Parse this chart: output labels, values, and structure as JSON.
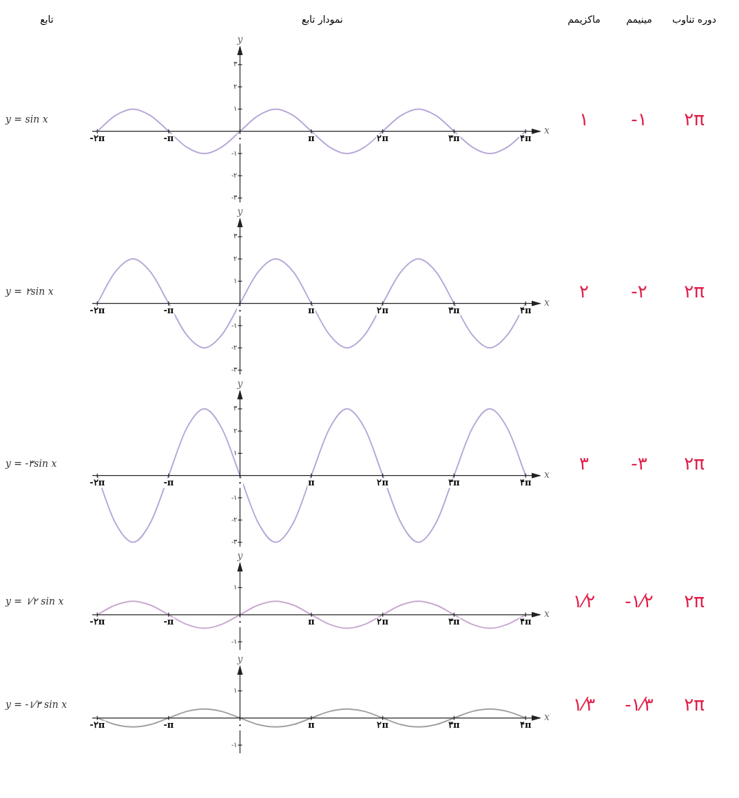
{
  "chart_data": [
    {
      "type": "line",
      "title": "y = sin x",
      "xlabel": "x",
      "ylabel": "y",
      "annotations": [
        "تابع",
        "نمودار تابع",
        "ماکزیمم",
        "مینیمم",
        "دوره تناوب",
        "۱",
        "-۱",
        "۲π"
      ],
      "x": [
        -6.28,
        -5.5,
        -4.71,
        -3.93,
        -3.14,
        -2.36,
        -1.57,
        -0.79,
        0,
        0.79,
        1.57,
        2.36,
        3.14,
        3.93,
        4.71,
        5.5,
        6.28,
        7.07,
        7.85,
        8.64,
        9.42,
        10.21,
        10.99,
        11.78,
        12.57
      ],
      "series": [
        {
          "color": "#b8a8d8",
          "values": [
            0,
            0.7,
            1,
            0.7,
            0,
            -0.7,
            -1,
            -0.7,
            0,
            0.7,
            1,
            0.7,
            0,
            -0.7,
            -1,
            -0.7,
            0,
            0.7,
            1,
            0.7,
            0,
            -0.7,
            -1,
            -0.7,
            0
          ]
        }
      ],
      "xlim": [
        -6.5,
        13.2
      ],
      "ylim": [
        -3.2,
        3.8
      ],
      "xticks": [
        {
          "value": -6.28,
          "label": "-۲π"
        },
        {
          "value": -3.14,
          "label": "-π"
        },
        {
          "value": 0,
          "label": "۰"
        },
        {
          "value": 3.14,
          "label": "π"
        },
        {
          "value": 6.28,
          "label": "۲π"
        },
        {
          "value": 9.42,
          "label": "۳π"
        },
        {
          "value": 12.57,
          "label": "۴π"
        }
      ],
      "yticks": [
        {
          "value": -3,
          "label": "-۳"
        },
        {
          "value": -2,
          "label": "-۲"
        },
        {
          "value": -1,
          "label": "-۱"
        },
        {
          "value": 1,
          "label": "۱"
        },
        {
          "value": 2,
          "label": "۲"
        },
        {
          "value": 3,
          "label": "۳"
        }
      ],
      "legend": false,
      "grid": false,
      "marker": "none",
      "line_style": "solid"
    },
    {
      "type": "line",
      "title": "y = ۲sin x",
      "xlabel": "x",
      "ylabel": "y",
      "annotations": [
        "۲",
        "-۲",
        "۲π"
      ],
      "x": [
        -6.28,
        -5.5,
        -4.71,
        -3.93,
        -3.14,
        -2.36,
        -1.57,
        -0.79,
        0,
        0.79,
        1.57,
        2.36,
        3.14,
        3.93,
        4.71,
        5.5,
        6.28,
        7.07,
        7.85,
        8.64,
        9.42,
        10.21,
        10.99,
        11.78,
        12.57
      ],
      "series": [
        {
          "color": "#b8a8d8",
          "values": [
            0,
            1.4,
            2,
            1.4,
            0,
            -1.4,
            -2,
            -1.4,
            0,
            1.4,
            2,
            1.4,
            0,
            -1.4,
            -2,
            -1.4,
            0,
            1.4,
            2,
            1.4,
            0,
            -1.4,
            -2,
            -1.4,
            0
          ]
        }
      ],
      "xlim": [
        -6.5,
        13.2
      ],
      "ylim": [
        -3.2,
        3.8
      ],
      "xticks": [
        {
          "value": -6.28,
          "label": "-۲π"
        },
        {
          "value": -3.14,
          "label": "-π"
        },
        {
          "value": 0,
          "label": "۰"
        },
        {
          "value": 3.14,
          "label": "π"
        },
        {
          "value": 6.28,
          "label": "۲π"
        },
        {
          "value": 9.42,
          "label": "۳π"
        },
        {
          "value": 12.57,
          "label": "۴π"
        }
      ],
      "yticks": [
        {
          "value": -3,
          "label": "-۳"
        },
        {
          "value": -2,
          "label": "-۲"
        },
        {
          "value": -1,
          "label": "-۱"
        },
        {
          "value": 1,
          "label": "۱"
        },
        {
          "value": 2,
          "label": "۲"
        },
        {
          "value": 3,
          "label": "۳"
        }
      ],
      "legend": false,
      "grid": false,
      "marker": "none",
      "line_style": "solid"
    },
    {
      "type": "line",
      "title": "y = -۳sin x",
      "xlabel": "x",
      "ylabel": "y",
      "annotations": [
        "۳",
        "-۳",
        "۲π"
      ],
      "x": [
        -6.28,
        -5.5,
        -4.71,
        -3.93,
        -3.14,
        -2.36,
        -1.57,
        -0.79,
        0,
        0.79,
        1.57,
        2.36,
        3.14,
        3.93,
        4.71,
        5.5,
        6.28,
        7.07,
        7.85,
        8.64,
        9.42,
        10.21,
        10.99,
        11.78,
        12.57
      ],
      "series": [
        {
          "color": "#b8a8d8",
          "values": [
            0,
            -2.1,
            -3,
            -2.1,
            0,
            2.1,
            3,
            2.1,
            0,
            -2.1,
            -3,
            -2.1,
            0,
            2.1,
            3,
            2.1,
            0,
            -2.1,
            -3,
            -2.1,
            0,
            2.1,
            3,
            2.1,
            0
          ]
        }
      ],
      "xlim": [
        -6.5,
        13.2
      ],
      "ylim": [
        -3.2,
        3.8
      ],
      "xticks": [
        {
          "value": -6.28,
          "label": "-۲π"
        },
        {
          "value": -3.14,
          "label": "-π"
        },
        {
          "value": 0,
          "label": "۰"
        },
        {
          "value": 3.14,
          "label": "π"
        },
        {
          "value": 6.28,
          "label": "۲π"
        },
        {
          "value": 9.42,
          "label": "۳π"
        },
        {
          "value": 12.57,
          "label": "۴π"
        }
      ],
      "yticks": [
        {
          "value": -3,
          "label": "-۳"
        },
        {
          "value": -2,
          "label": "-۲"
        },
        {
          "value": -1,
          "label": "-۱"
        },
        {
          "value": 1,
          "label": "۱"
        },
        {
          "value": 2,
          "label": "۲"
        },
        {
          "value": 3,
          "label": "۳"
        }
      ],
      "legend": false,
      "grid": false,
      "marker": "none",
      "line_style": "solid"
    },
    {
      "type": "line",
      "title": "y = ۱⁄۲ sin x",
      "xlabel": "x",
      "ylabel": "y",
      "annotations": [
        "۱⁄۲",
        "-۱⁄۲",
        "۲π"
      ],
      "x": [
        -6.28,
        -5.5,
        -4.71,
        -3.93,
        -3.14,
        -2.36,
        -1.57,
        -0.79,
        0,
        0.79,
        1.57,
        2.36,
        3.14,
        3.93,
        4.71,
        5.5,
        6.28,
        7.07,
        7.85,
        8.64,
        9.42,
        10.21,
        10.99,
        11.78,
        12.57
      ],
      "series": [
        {
          "color": "#c8a8d0",
          "values": [
            0,
            0.35,
            0.5,
            0.35,
            0,
            -0.35,
            -0.5,
            -0.35,
            0,
            0.35,
            0.5,
            0.35,
            0,
            -0.35,
            -0.5,
            -0.35,
            0,
            0.35,
            0.5,
            0.35,
            0,
            -0.35,
            -0.5,
            -0.35,
            0
          ]
        }
      ],
      "xlim": [
        -6.5,
        13.2
      ],
      "ylim": [
        -1.3,
        1.9
      ],
      "xticks": [
        {
          "value": -6.28,
          "label": "-۲π"
        },
        {
          "value": -3.14,
          "label": "-π"
        },
        {
          "value": 0,
          "label": "۰"
        },
        {
          "value": 3.14,
          "label": "π"
        },
        {
          "value": 6.28,
          "label": "۲π"
        },
        {
          "value": 9.42,
          "label": "۳π"
        },
        {
          "value": 12.57,
          "label": "۴π"
        }
      ],
      "yticks": [
        {
          "value": -1,
          "label": "-۱"
        },
        {
          "value": 1,
          "label": "۱"
        }
      ],
      "legend": false,
      "grid": false,
      "marker": "none",
      "line_style": "solid"
    },
    {
      "type": "line",
      "title": "y = -۱⁄۳ sin x",
      "xlabel": "x",
      "ylabel": "y",
      "annotations": [
        "۱⁄۳",
        "-۱⁄۳",
        "۲π"
      ],
      "x": [
        -6.28,
        -5.5,
        -4.71,
        -3.93,
        -3.14,
        -2.36,
        -1.57,
        -0.79,
        0,
        0.79,
        1.57,
        2.36,
        3.14,
        3.93,
        4.71,
        5.5,
        6.28,
        7.07,
        7.85,
        8.64,
        9.42,
        10.21,
        10.99,
        11.78,
        12.57
      ],
      "series": [
        {
          "color": "#a0a0a0",
          "values": [
            0,
            -0.24,
            -0.33,
            -0.24,
            0,
            0.24,
            0.33,
            0.24,
            0,
            -0.24,
            -0.33,
            -0.24,
            0,
            0.24,
            0.33,
            0.24,
            0,
            -0.24,
            -0.33,
            -0.24,
            0,
            0.24,
            0.33,
            0.24,
            0
          ]
        }
      ],
      "xlim": [
        -6.5,
        13.2
      ],
      "ylim": [
        -1.3,
        1.9
      ],
      "xticks": [
        {
          "value": -6.28,
          "label": "-۲π"
        },
        {
          "value": -3.14,
          "label": "-π"
        },
        {
          "value": 0,
          "label": "۰"
        },
        {
          "value": 3.14,
          "label": "π"
        },
        {
          "value": 6.28,
          "label": "۲π"
        },
        {
          "value": 9.42,
          "label": "۳π"
        },
        {
          "value": 12.57,
          "label": "۴π"
        }
      ],
      "yticks": [
        {
          "value": -1,
          "label": "-۱"
        },
        {
          "value": 1,
          "label": "۱"
        }
      ],
      "legend": false,
      "grid": false,
      "marker": "none",
      "line_style": "solid"
    }
  ]
}
